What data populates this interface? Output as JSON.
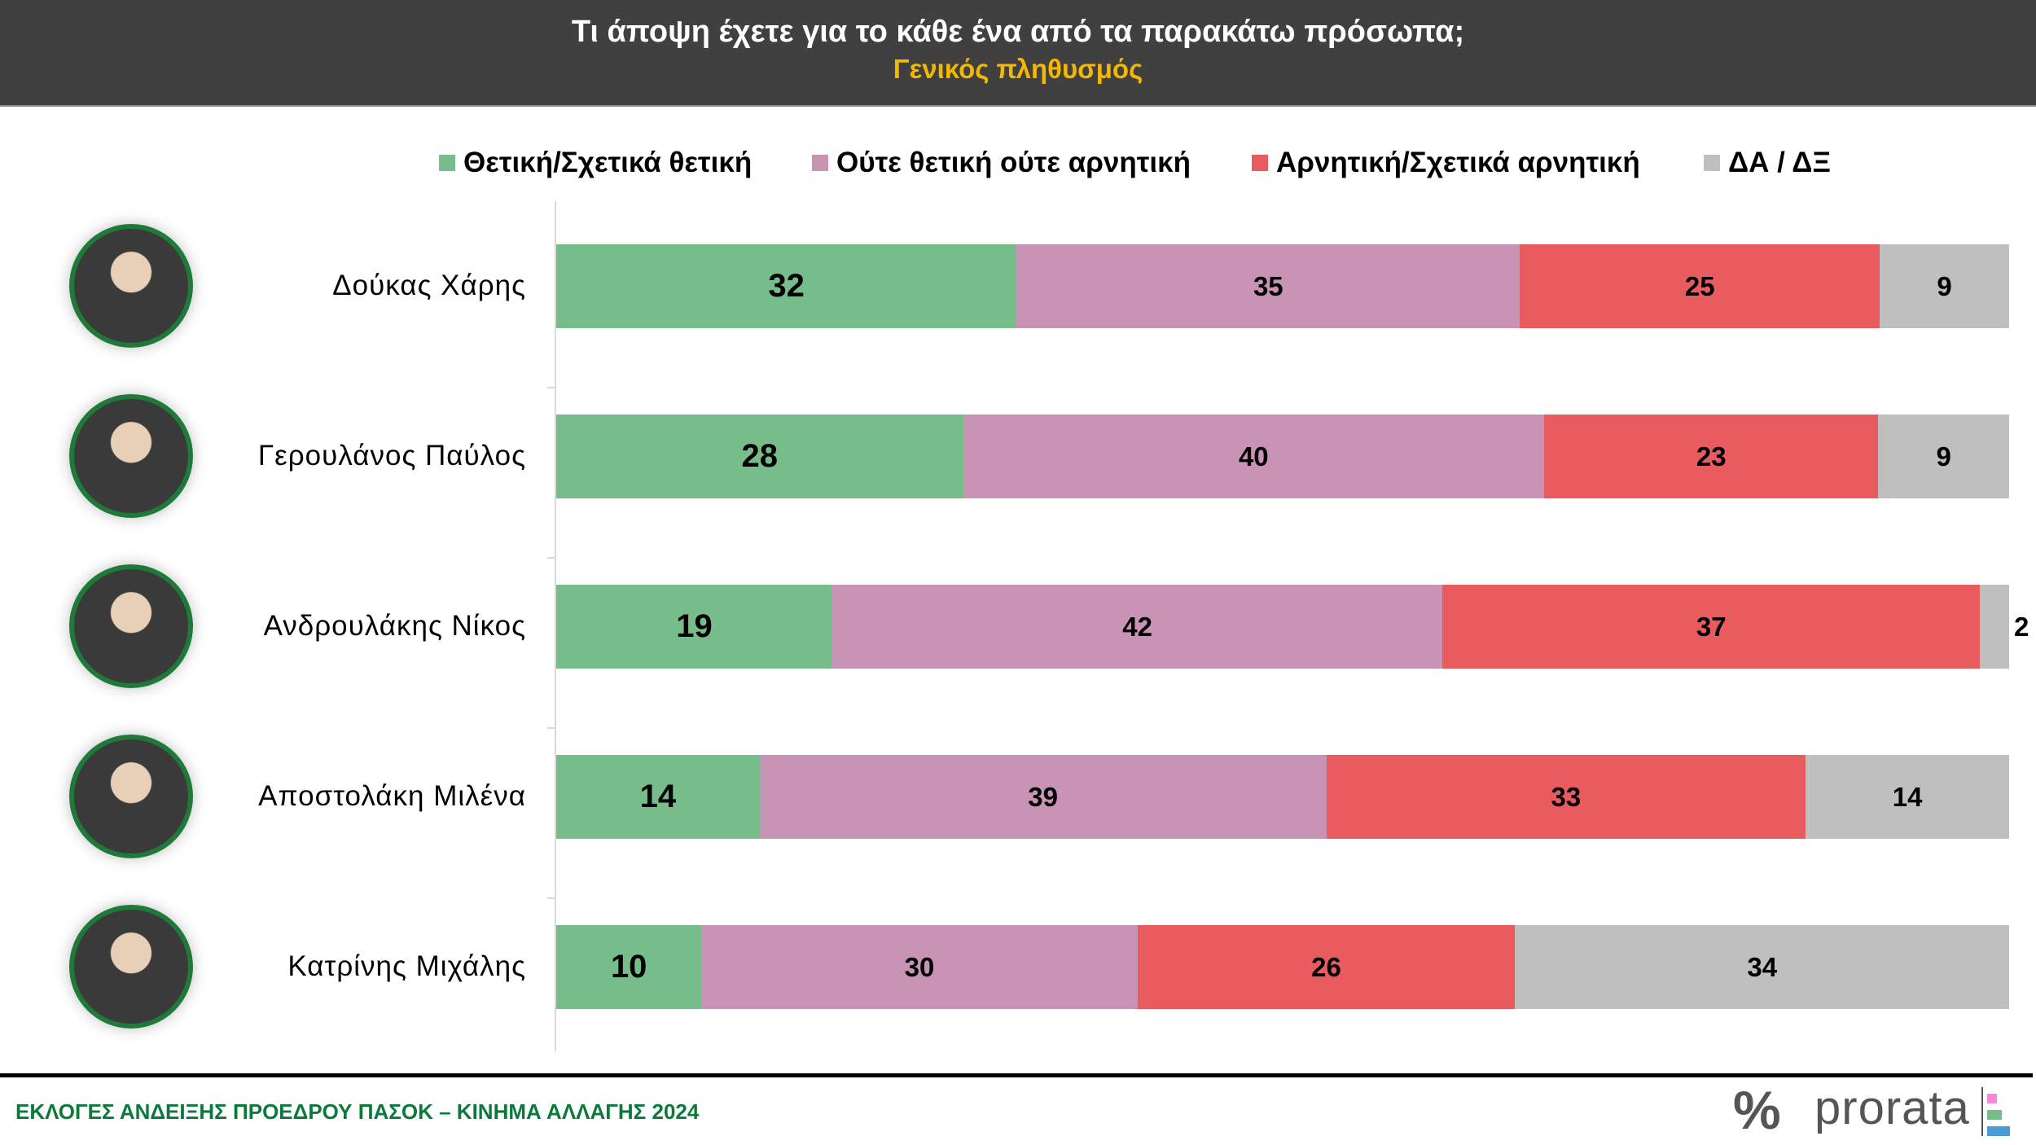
{
  "header": {
    "title": "Τι άποψη έχετε για το κάθε ένα από τα παρακάτω πρόσωπα;",
    "subtitle": "Γενικός πληθυσμός"
  },
  "chart_data": {
    "type": "bar",
    "orientation": "horizontal",
    "stacked": true,
    "title": "Τι άποψη έχετε για το κάθε ένα από τα παρακάτω πρόσωπα;",
    "subtitle": "Γενικός πληθυσμός",
    "legend_position": "top",
    "grid": false,
    "categories": [
      "Δούκας Χάρης",
      "Γερουλάνος Παύλος",
      "Ανδρουλάκης Νίκος",
      "Αποστολάκη Μιλένα",
      "Κατρίνης Μιχάλης"
    ],
    "series": [
      {
        "name": "Θετική/Σχετικά θετική",
        "color": "#77BD8B",
        "values": [
          32,
          28,
          19,
          14,
          10
        ]
      },
      {
        "name": "Ούτε θετική ούτε αρνητική",
        "color": "#C993B6",
        "values": [
          35,
          40,
          42,
          39,
          30
        ]
      },
      {
        "name": "Αρνητική/Σχετικά αρνητική",
        "color": "#E85C5F",
        "values": [
          25,
          23,
          37,
          33,
          26
        ]
      },
      {
        "name": "ΔΑ / ΔΞ",
        "color": "#BFBFBF",
        "values": [
          9,
          9,
          2,
          14,
          34
        ]
      }
    ]
  },
  "footer": {
    "text": "ΕΚΛΟΓΕΣ ΑΝΔΕΙΞΗΣ ΠΡΟΕΔΡΟΥ ΠΑΣΟΚ   – ΚΙΝΗΜΑ ΑΛΛΑΓΗΣ 2024",
    "logo_text": "prorata",
    "logo_symbol": "%"
  }
}
